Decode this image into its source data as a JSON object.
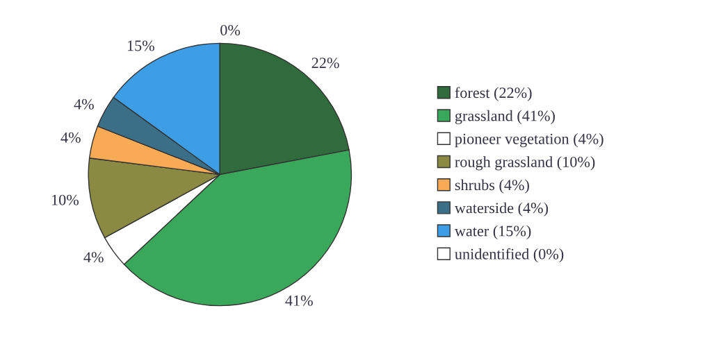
{
  "chart_data": {
    "type": "pie",
    "categories": [
      "forest (22%)",
      "grassland (41%)",
      "pioneer vegetation (4%)",
      "rough grassland (10%)",
      "shrubs (4%)",
      "waterside (4%)",
      "water (15%)",
      "unidentified (0%)"
    ],
    "values": [
      22,
      41,
      4,
      10,
      4,
      4,
      15,
      0
    ],
    "colors": [
      "#2f6b3c",
      "#3aa85a",
      "#ffffff",
      "#8a8a42",
      "#f8aa55",
      "#3b6f88",
      "#3d9ee6",
      "#ffffff"
    ],
    "value_labels": [
      "22%",
      "41%",
      "4%",
      "10%",
      "4%",
      "4%",
      "15%",
      "0%"
    ],
    "legend": "right"
  }
}
